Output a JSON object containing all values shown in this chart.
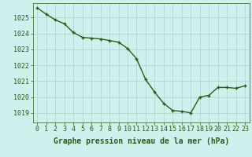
{
  "x": [
    0,
    1,
    2,
    3,
    4,
    5,
    6,
    7,
    8,
    9,
    10,
    11,
    12,
    13,
    14,
    15,
    16,
    17,
    18,
    19,
    20,
    21,
    22,
    23
  ],
  "y": [
    1025.6,
    1025.2,
    1024.85,
    1024.6,
    1024.05,
    1023.75,
    1023.7,
    1023.65,
    1023.55,
    1023.45,
    1023.05,
    1022.4,
    1021.1,
    1020.3,
    1019.6,
    1019.15,
    1019.1,
    1019.0,
    1020.0,
    1020.1,
    1020.6,
    1020.6,
    1020.55,
    1020.7
  ],
  "line_color": "#2d5a1b",
  "marker": "+",
  "marker_size": 3,
  "marker_linewidth": 1.0,
  "line_width": 1.0,
  "background_color": "#cff0ec",
  "grid_color": "#aad4cf",
  "ylabel_ticks": [
    1019,
    1020,
    1021,
    1022,
    1023,
    1024,
    1025
  ],
  "xlabel": "Graphe pression niveau de la mer (hPa)",
  "xlabel_fontsize": 7,
  "tick_fontsize": 6,
  "ylim": [
    1018.4,
    1025.9
  ],
  "xlim": [
    -0.5,
    23.5
  ]
}
